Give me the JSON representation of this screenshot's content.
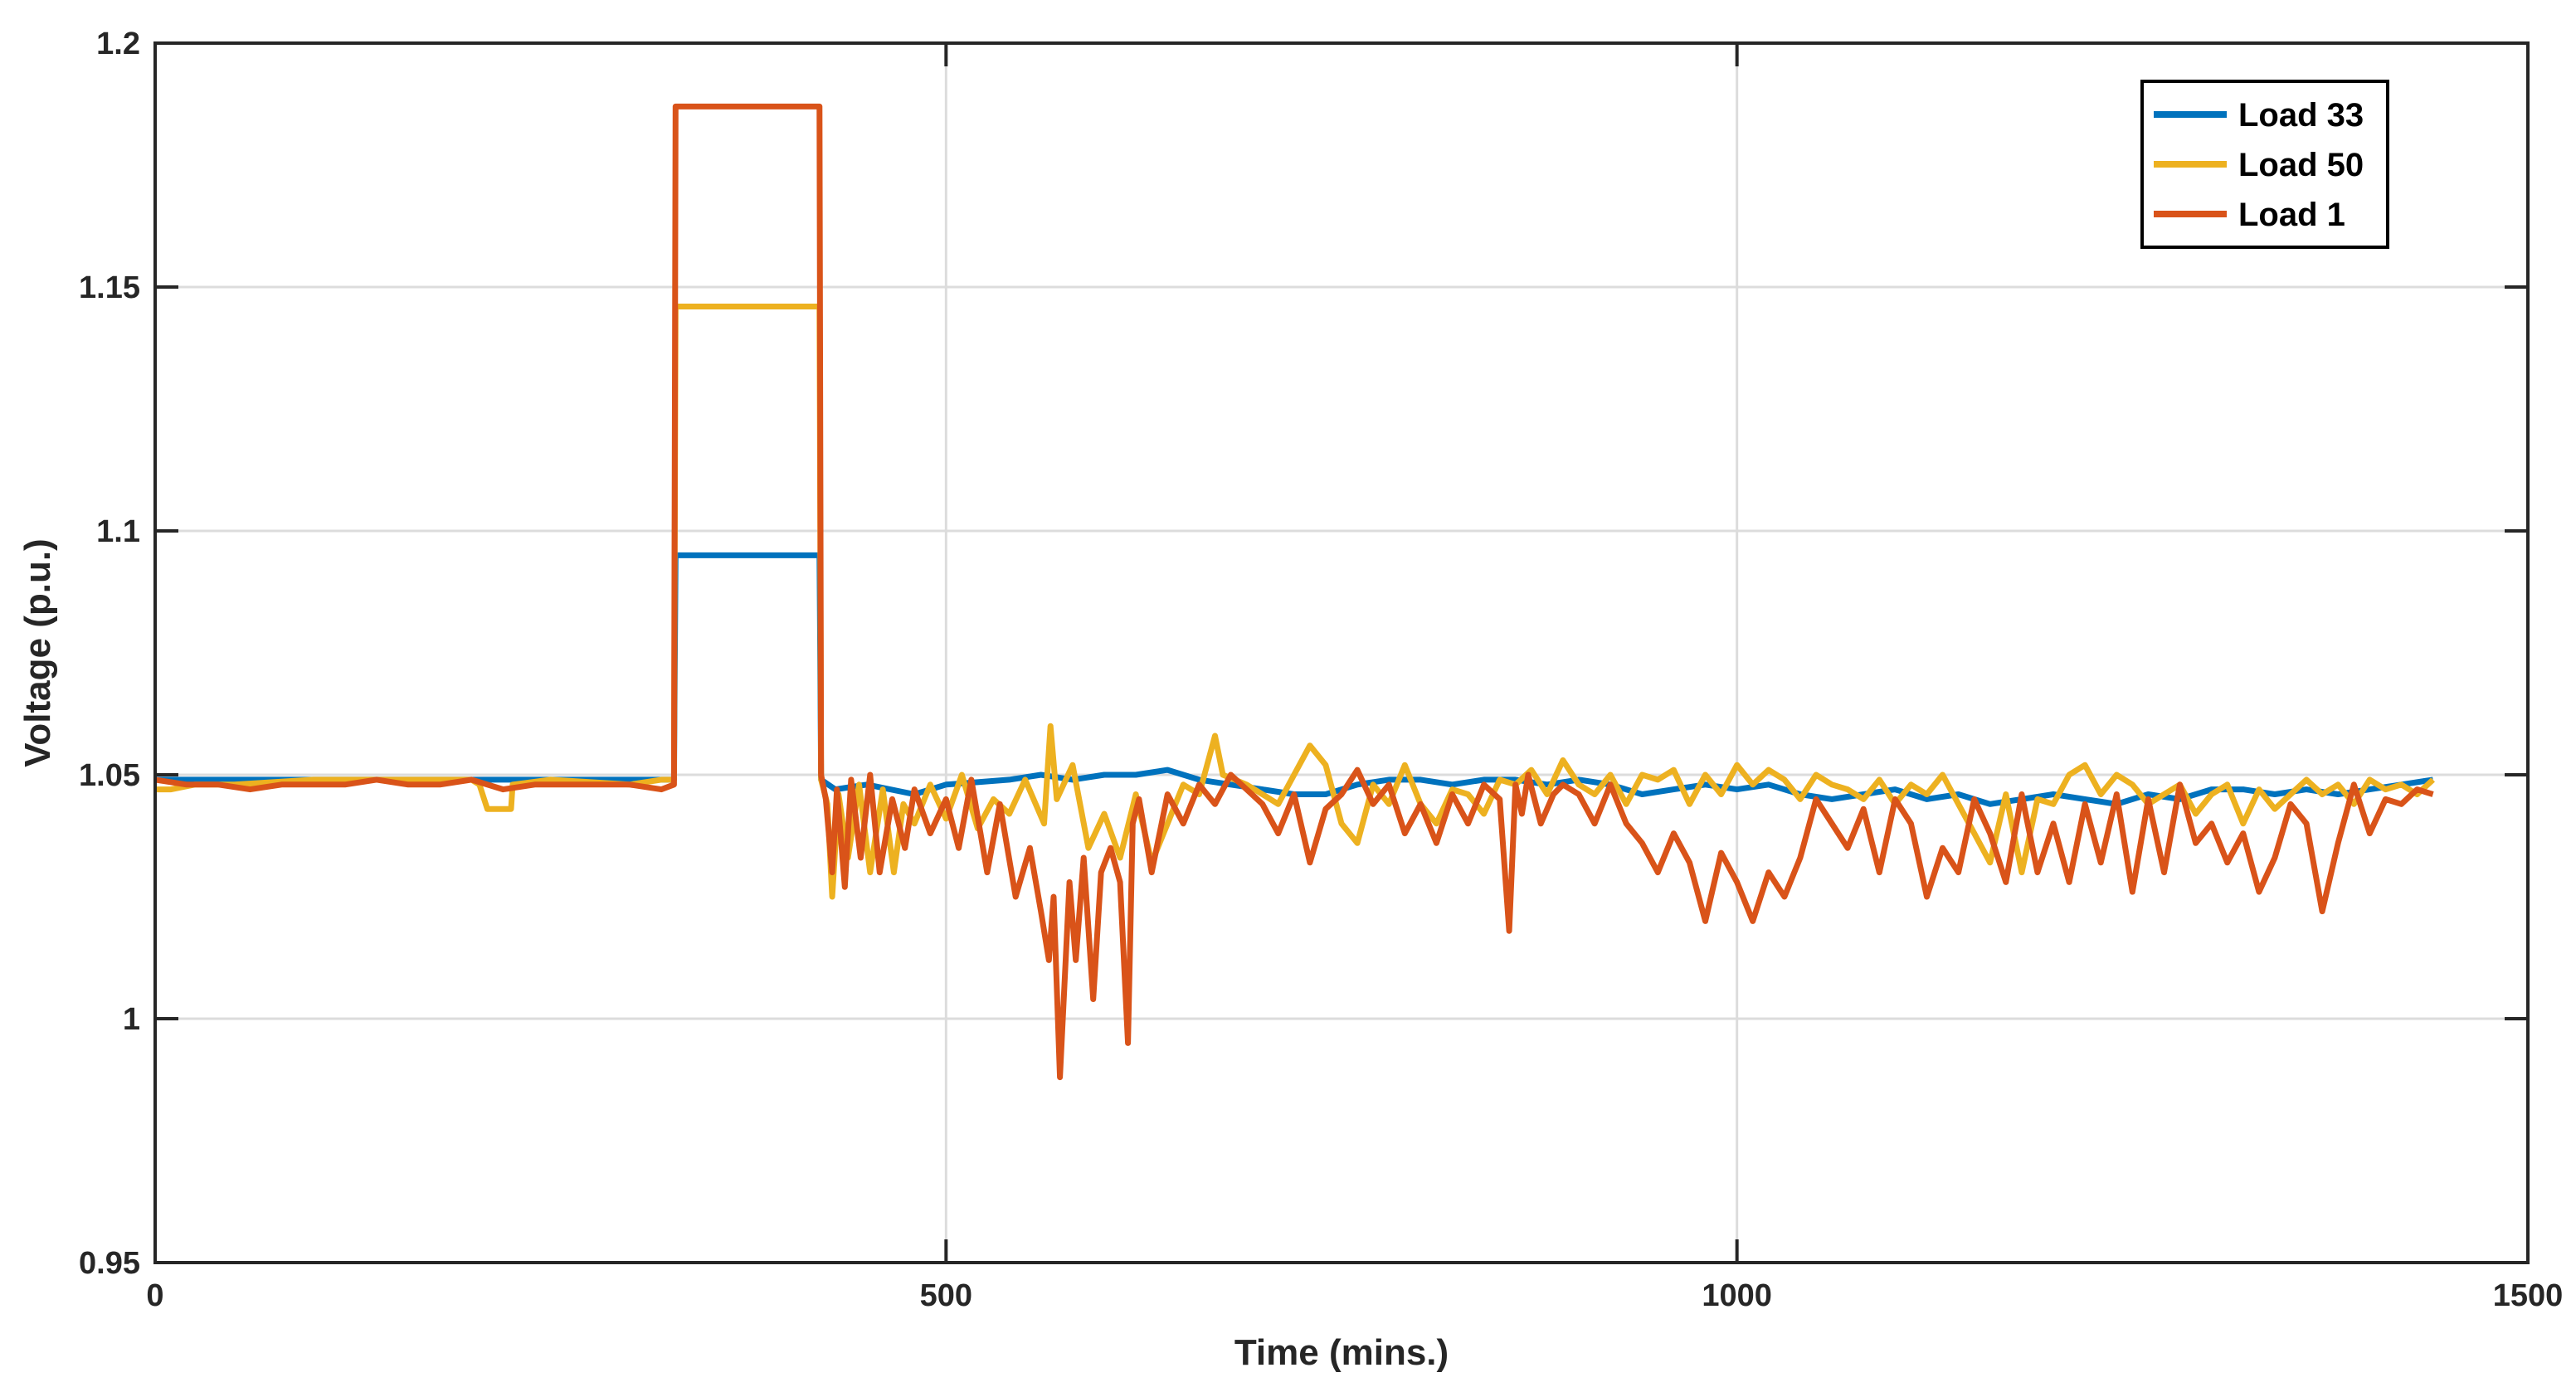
{
  "chart_data": {
    "type": "line",
    "title": "",
    "xlabel": "Time (mins.)",
    "ylabel": "Voltage (p.u.)",
    "xlim": [
      0,
      1500
    ],
    "ylim": [
      0.95,
      1.2
    ],
    "grid": true,
    "legend_position": "top-right",
    "x_ticks": [
      "0",
      "500",
      "1000",
      "1500"
    ],
    "y_ticks": [
      "0.95",
      "1",
      "1.05",
      "1.1",
      "1.15",
      "1.2"
    ],
    "series": [
      {
        "name": "Load 33",
        "color": "#0072BD",
        "x": [
          0,
          50,
          100,
          150,
          200,
          250,
          300,
          320,
          328,
          329,
          420,
          421,
          430,
          450,
          480,
          500,
          540,
          560,
          580,
          600,
          620,
          640,
          660,
          680,
          700,
          720,
          740,
          760,
          780,
          800,
          820,
          840,
          860,
          880,
          900,
          920,
          940,
          960,
          980,
          1000,
          1020,
          1040,
          1060,
          1080,
          1100,
          1120,
          1140,
          1160,
          1180,
          1200,
          1220,
          1240,
          1260,
          1280,
          1300,
          1320,
          1340,
          1360,
          1380,
          1400,
          1420,
          1440
        ],
        "y": [
          1.049,
          1.049,
          1.049,
          1.049,
          1.049,
          1.049,
          1.049,
          1.049,
          1.049,
          1.095,
          1.095,
          1.049,
          1.047,
          1.048,
          1.046,
          1.048,
          1.049,
          1.05,
          1.049,
          1.05,
          1.05,
          1.051,
          1.049,
          1.048,
          1.047,
          1.046,
          1.046,
          1.048,
          1.049,
          1.049,
          1.048,
          1.049,
          1.049,
          1.048,
          1.049,
          1.048,
          1.046,
          1.047,
          1.048,
          1.047,
          1.048,
          1.046,
          1.045,
          1.046,
          1.047,
          1.045,
          1.046,
          1.044,
          1.045,
          1.046,
          1.045,
          1.044,
          1.046,
          1.045,
          1.047,
          1.047,
          1.046,
          1.047,
          1.046,
          1.047,
          1.048,
          1.049
        ]
      },
      {
        "name": "Load 50",
        "color": "#EDB120",
        "x": [
          0,
          10,
          25,
          50,
          100,
          150,
          200,
          205,
          210,
          225,
          226,
          250,
          300,
          320,
          328,
          329,
          420,
          421,
          425,
          428,
          432,
          438,
          445,
          452,
          460,
          467,
          473,
          480,
          490,
          500,
          510,
          520,
          530,
          540,
          550,
          562,
          566,
          570,
          580,
          590,
          600,
          610,
          620,
          630,
          640,
          650,
          660,
          670,
          675,
          690,
          700,
          710,
          720,
          730,
          740,
          750,
          760,
          770,
          780,
          790,
          800,
          810,
          820,
          830,
          840,
          850,
          860,
          870,
          880,
          890,
          900,
          910,
          920,
          930,
          940,
          950,
          960,
          970,
          980,
          990,
          1000,
          1010,
          1020,
          1030,
          1040,
          1050,
          1060,
          1070,
          1080,
          1090,
          1100,
          1110,
          1120,
          1130,
          1140,
          1150,
          1160,
          1170,
          1180,
          1190,
          1200,
          1210,
          1220,
          1230,
          1240,
          1250,
          1260,
          1270,
          1280,
          1290,
          1300,
          1310,
          1320,
          1330,
          1340,
          1350,
          1360,
          1370,
          1380,
          1390,
          1400,
          1410,
          1420,
          1430,
          1440
        ],
        "y": [
          1.047,
          1.047,
          1.048,
          1.048,
          1.049,
          1.049,
          1.049,
          1.048,
          1.043,
          1.043,
          1.048,
          1.049,
          1.048,
          1.049,
          1.049,
          1.146,
          1.146,
          1.049,
          1.044,
          1.025,
          1.046,
          1.033,
          1.048,
          1.03,
          1.047,
          1.03,
          1.044,
          1.04,
          1.048,
          1.041,
          1.05,
          1.039,
          1.045,
          1.042,
          1.049,
          1.04,
          1.06,
          1.045,
          1.052,
          1.035,
          1.042,
          1.033,
          1.046,
          1.032,
          1.04,
          1.048,
          1.046,
          1.058,
          1.05,
          1.048,
          1.046,
          1.044,
          1.05,
          1.056,
          1.052,
          1.04,
          1.036,
          1.048,
          1.044,
          1.052,
          1.044,
          1.04,
          1.047,
          1.046,
          1.042,
          1.049,
          1.048,
          1.051,
          1.046,
          1.053,
          1.048,
          1.046,
          1.05,
          1.044,
          1.05,
          1.049,
          1.051,
          1.044,
          1.05,
          1.046,
          1.052,
          1.048,
          1.051,
          1.049,
          1.045,
          1.05,
          1.048,
          1.047,
          1.045,
          1.049,
          1.044,
          1.048,
          1.046,
          1.05,
          1.044,
          1.038,
          1.032,
          1.046,
          1.03,
          1.045,
          1.044,
          1.05,
          1.052,
          1.046,
          1.05,
          1.048,
          1.044,
          1.046,
          1.048,
          1.042,
          1.046,
          1.048,
          1.04,
          1.047,
          1.043,
          1.046,
          1.049,
          1.046,
          1.048,
          1.044,
          1.049,
          1.047,
          1.048,
          1.046,
          1.049
        ]
      },
      {
        "name": "Load 1",
        "color": "#D95319",
        "x": [
          0,
          20,
          40,
          60,
          80,
          100,
          120,
          140,
          160,
          180,
          200,
          220,
          240,
          260,
          280,
          300,
          320,
          328,
          329,
          420,
          421,
          424,
          428,
          431,
          436,
          440,
          446,
          452,
          458,
          466,
          474,
          480,
          490,
          500,
          508,
          516,
          526,
          534,
          544,
          553,
          560,
          565,
          568,
          572,
          578,
          582,
          587,
          593,
          598,
          604,
          610,
          615,
          618,
          622,
          630,
          640,
          650,
          660,
          670,
          680,
          690,
          700,
          710,
          720,
          730,
          740,
          750,
          760,
          770,
          780,
          790,
          800,
          810,
          820,
          830,
          840,
          850,
          856,
          860,
          864,
          868,
          876,
          884,
          890,
          900,
          910,
          920,
          930,
          940,
          950,
          960,
          970,
          980,
          990,
          1000,
          1010,
          1020,
          1030,
          1040,
          1050,
          1060,
          1070,
          1080,
          1090,
          1100,
          1110,
          1120,
          1130,
          1140,
          1150,
          1160,
          1170,
          1180,
          1190,
          1200,
          1210,
          1220,
          1230,
          1240,
          1250,
          1260,
          1270,
          1280,
          1290,
          1300,
          1310,
          1320,
          1330,
          1340,
          1350,
          1360,
          1370,
          1380,
          1390,
          1400,
          1410,
          1420,
          1430,
          1440
        ],
        "y": [
          1.049,
          1.048,
          1.048,
          1.047,
          1.048,
          1.048,
          1.048,
          1.049,
          1.048,
          1.048,
          1.049,
          1.047,
          1.048,
          1.048,
          1.048,
          1.048,
          1.047,
          1.048,
          1.187,
          1.187,
          1.05,
          1.045,
          1.03,
          1.047,
          1.027,
          1.049,
          1.033,
          1.05,
          1.03,
          1.045,
          1.035,
          1.047,
          1.038,
          1.045,
          1.035,
          1.049,
          1.03,
          1.044,
          1.025,
          1.035,
          1.022,
          1.012,
          1.025,
          0.988,
          1.028,
          1.012,
          1.033,
          1.004,
          1.03,
          1.035,
          1.028,
          0.995,
          1.04,
          1.045,
          1.03,
          1.046,
          1.04,
          1.048,
          1.044,
          1.05,
          1.047,
          1.044,
          1.038,
          1.046,
          1.032,
          1.043,
          1.046,
          1.051,
          1.044,
          1.048,
          1.038,
          1.044,
          1.036,
          1.046,
          1.04,
          1.048,
          1.045,
          1.018,
          1.048,
          1.042,
          1.05,
          1.04,
          1.046,
          1.048,
          1.046,
          1.04,
          1.048,
          1.04,
          1.036,
          1.03,
          1.038,
          1.032,
          1.02,
          1.034,
          1.028,
          1.02,
          1.03,
          1.025,
          1.033,
          1.045,
          1.04,
          1.035,
          1.043,
          1.03,
          1.045,
          1.04,
          1.025,
          1.035,
          1.03,
          1.045,
          1.038,
          1.028,
          1.046,
          1.03,
          1.04,
          1.028,
          1.044,
          1.032,
          1.046,
          1.026,
          1.045,
          1.03,
          1.048,
          1.036,
          1.04,
          1.032,
          1.038,
          1.026,
          1.033,
          1.044,
          1.04,
          1.022,
          1.036,
          1.048,
          1.038,
          1.045,
          1.044,
          1.047,
          1.046
        ]
      }
    ]
  }
}
